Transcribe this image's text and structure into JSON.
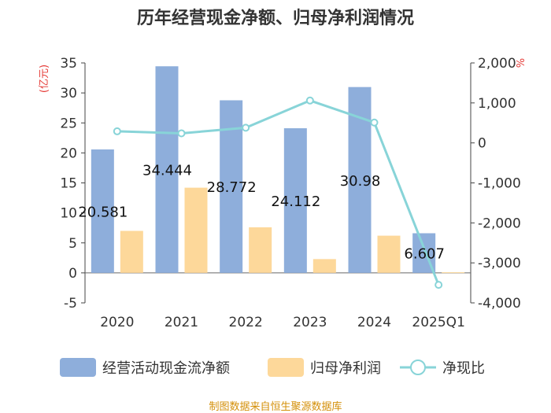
{
  "title": "历年经营现金净额、归母净利润情况",
  "source": "制图数据来自恒生聚源数据库",
  "chart_data": {
    "type": "bar",
    "categories": [
      "2020",
      "2021",
      "2022",
      "2023",
      "2024",
      "2025Q1"
    ],
    "y_left": {
      "unit": "(亿元)",
      "range": [
        -5,
        35
      ],
      "ticks": [
        "-5",
        "0",
        "5",
        "10",
        "15",
        "20",
        "25",
        "30",
        "35"
      ]
    },
    "y_right": {
      "unit": "%",
      "range": [
        -4000,
        2000
      ],
      "ticks": [
        "-4,000",
        "-3,000",
        "-2,000",
        "-1,000",
        "0",
        "1,000",
        "2,000"
      ]
    },
    "series": [
      {
        "name": "经营活动现金流净额",
        "type": "bar",
        "axis": "left",
        "color": "#8eaedb",
        "values": [
          20.581,
          34.444,
          28.772,
          24.112,
          30.98,
          6.607
        ],
        "labels": [
          "20.581",
          "34.444",
          "28.772",
          "24.112",
          "30.98",
          "6.607"
        ]
      },
      {
        "name": "归母净利润",
        "type": "bar",
        "axis": "left",
        "color": "#fdd89a",
        "values": [
          7.0,
          14.2,
          7.6,
          2.3,
          6.2,
          0.1
        ]
      },
      {
        "name": "净现比",
        "type": "line",
        "axis": "right",
        "color": "#88d4d8",
        "values": [
          290,
          240,
          380,
          1060,
          510,
          -3550
        ]
      }
    ],
    "legend_position": "bottom",
    "grid": false
  }
}
